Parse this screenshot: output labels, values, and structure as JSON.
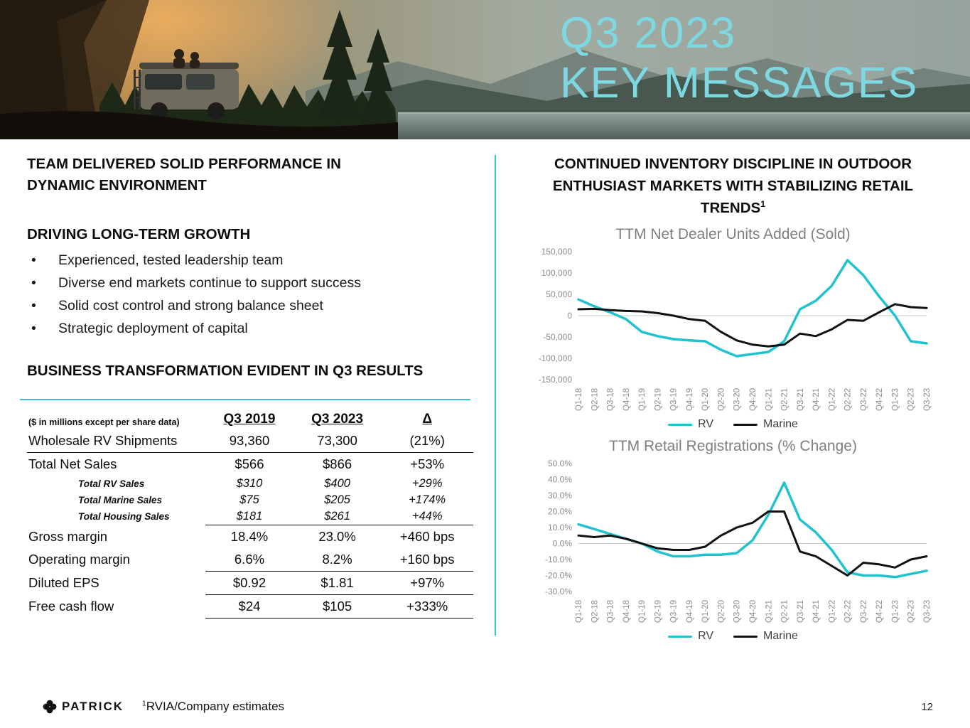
{
  "slide": {
    "title_line1": "Q3 2023",
    "title_line2": "KEY MESSAGES",
    "logo_text": "PATRICK",
    "footnote_sup": "1",
    "footnote_text": "RVIA/Company estimates",
    "page_number": "12",
    "accent_color": "#35c4cf",
    "title_color": "#7ed8e2"
  },
  "left": {
    "heading_performance": "TEAM DELIVERED SOLID PERFORMANCE IN DYNAMIC ENVIRONMENT",
    "heading_growth": "DRIVING LONG-TERM GROWTH",
    "bullets": [
      "Experienced, tested leadership team",
      "Diverse end markets continue to support success",
      "Solid cost control and strong balance sheet",
      "Strategic deployment of capital"
    ],
    "heading_transformation": "BUSINESS TRANSFORMATION EVIDENT IN Q3 RESULTS",
    "table": {
      "note": "($ in millions except per share data)",
      "columns": [
        "Q3 2019",
        "Q3 2023",
        "Δ"
      ],
      "rows": [
        {
          "label": "Wholesale RV Shipments",
          "q3_2019": "93,360",
          "q3_2023": "73,300",
          "delta": "(21%)",
          "cls": ""
        },
        {
          "label": "Total Net Sales",
          "q3_2019": "$566",
          "q3_2023": "$866",
          "delta": "+53%",
          "cls": "rule-top-full"
        },
        {
          "label": "Total RV Sales",
          "q3_2019": "$310",
          "q3_2023": "$400",
          "delta": "+29%",
          "cls": "sub"
        },
        {
          "label": "Total Marine Sales",
          "q3_2019": "$75",
          "q3_2023": "$205",
          "delta": "+174%",
          "cls": "sub"
        },
        {
          "label": "Total Housing Sales",
          "q3_2019": "$181",
          "q3_2023": "$261",
          "delta": "+44%",
          "cls": "sub"
        },
        {
          "label": "Gross margin",
          "q3_2019": "18.4%",
          "q3_2023": "23.0%",
          "delta": "+460 bps",
          "cls": "rule-top-cols"
        },
        {
          "label": "Operating margin",
          "q3_2019": "6.6%",
          "q3_2023": "8.2%",
          "delta": "+160 bps",
          "cls": ""
        },
        {
          "label": "Diluted EPS",
          "q3_2019": "$0.92",
          "q3_2023": "$1.81",
          "delta": "+97%",
          "cls": "rule-top-cols"
        },
        {
          "label": "Free cash flow",
          "q3_2019": "$24",
          "q3_2023": "$105",
          "delta": "+333%",
          "cls": "rule-top-cols rule-bottom-cols"
        }
      ]
    }
  },
  "right": {
    "heading": "CONTINUED INVENTORY DISCIPLINE IN OUTDOOR ENTHUSIAST MARKETS WITH STABILIZING RETAIL TRENDS",
    "heading_sup": "1"
  },
  "chart_data": [
    {
      "type": "line",
      "title": "TTM Net Dealer Units Added (Sold)",
      "x": [
        "Q1-18",
        "Q2-18",
        "Q3-18",
        "Q4-18",
        "Q1-19",
        "Q2-19",
        "Q3-19",
        "Q4-19",
        "Q1-20",
        "Q2-20",
        "Q3-20",
        "Q4-20",
        "Q1-21",
        "Q2-21",
        "Q3-21",
        "Q4-21",
        "Q1-22",
        "Q2-22",
        "Q3-22",
        "Q4-22",
        "Q1-23",
        "Q2-23",
        "Q3-23"
      ],
      "series": [
        {
          "name": "RV",
          "color": "#1fc2cd",
          "width": 3.5,
          "values": [
            38000,
            22000,
            8000,
            -8000,
            -38000,
            -48000,
            -55000,
            -58000,
            -60000,
            -80000,
            -95000,
            -90000,
            -85000,
            -60000,
            15000,
            35000,
            70000,
            130000,
            95000,
            45000,
            0,
            -60000,
            -65000
          ]
        },
        {
          "name": "Marine",
          "color": "#111111",
          "width": 3,
          "values": [
            15000,
            16000,
            13000,
            11000,
            10000,
            6000,
            0,
            -8000,
            -12000,
            -38000,
            -58000,
            -68000,
            -72000,
            -68000,
            -42000,
            -48000,
            -32000,
            -10000,
            -12000,
            8000,
            27000,
            20000,
            18000
          ]
        }
      ],
      "ylim": [
        -150000,
        150000
      ],
      "yticks": [
        150000,
        100000,
        50000,
        0,
        -50000,
        -100000,
        -150000
      ],
      "ytick_labels": [
        "150,000",
        "100,000",
        "50,000",
        "0",
        "-50,000",
        "-100,000",
        "-150,000"
      ],
      "grid": "zero-line-only",
      "legend_position": "bottom"
    },
    {
      "type": "line",
      "title": "TTM Retail Registrations (% Change)",
      "x": [
        "Q1-18",
        "Q2-18",
        "Q3-18",
        "Q4-18",
        "Q1-19",
        "Q2-19",
        "Q3-19",
        "Q4-19",
        "Q1-20",
        "Q2-20",
        "Q3-20",
        "Q4-20",
        "Q1-21",
        "Q2-21",
        "Q3-21",
        "Q4-21",
        "Q1-22",
        "Q2-22",
        "Q3-22",
        "Q4-22",
        "Q1-23",
        "Q2-23",
        "Q3-23"
      ],
      "series": [
        {
          "name": "RV",
          "color": "#1fc2cd",
          "width": 3.5,
          "values": [
            12,
            9,
            6,
            3,
            0,
            -5,
            -8,
            -8,
            -7,
            -7,
            -6,
            2,
            18,
            38,
            15,
            7,
            -4,
            -18,
            -20,
            -20,
            -21,
            -19,
            -17
          ]
        },
        {
          "name": "Marine",
          "color": "#111111",
          "width": 3,
          "values": [
            5,
            4,
            5,
            3,
            0,
            -3,
            -4,
            -4,
            -2,
            5,
            10,
            13,
            20,
            20,
            -5,
            -8,
            -14,
            -20,
            -12,
            -13,
            -15,
            -10,
            -8
          ]
        }
      ],
      "ylim": [
        -30,
        50
      ],
      "yticks": [
        50,
        40,
        30,
        20,
        10,
        0,
        -10,
        -20,
        -30
      ],
      "ytick_labels": [
        "50.0%",
        "40.0%",
        "30.0%",
        "20.0%",
        "10.0%",
        "0.0%",
        "-10.0%",
        "-20.0%",
        "-30.0%"
      ],
      "grid": "zero-line-only",
      "legend_position": "bottom"
    }
  ]
}
